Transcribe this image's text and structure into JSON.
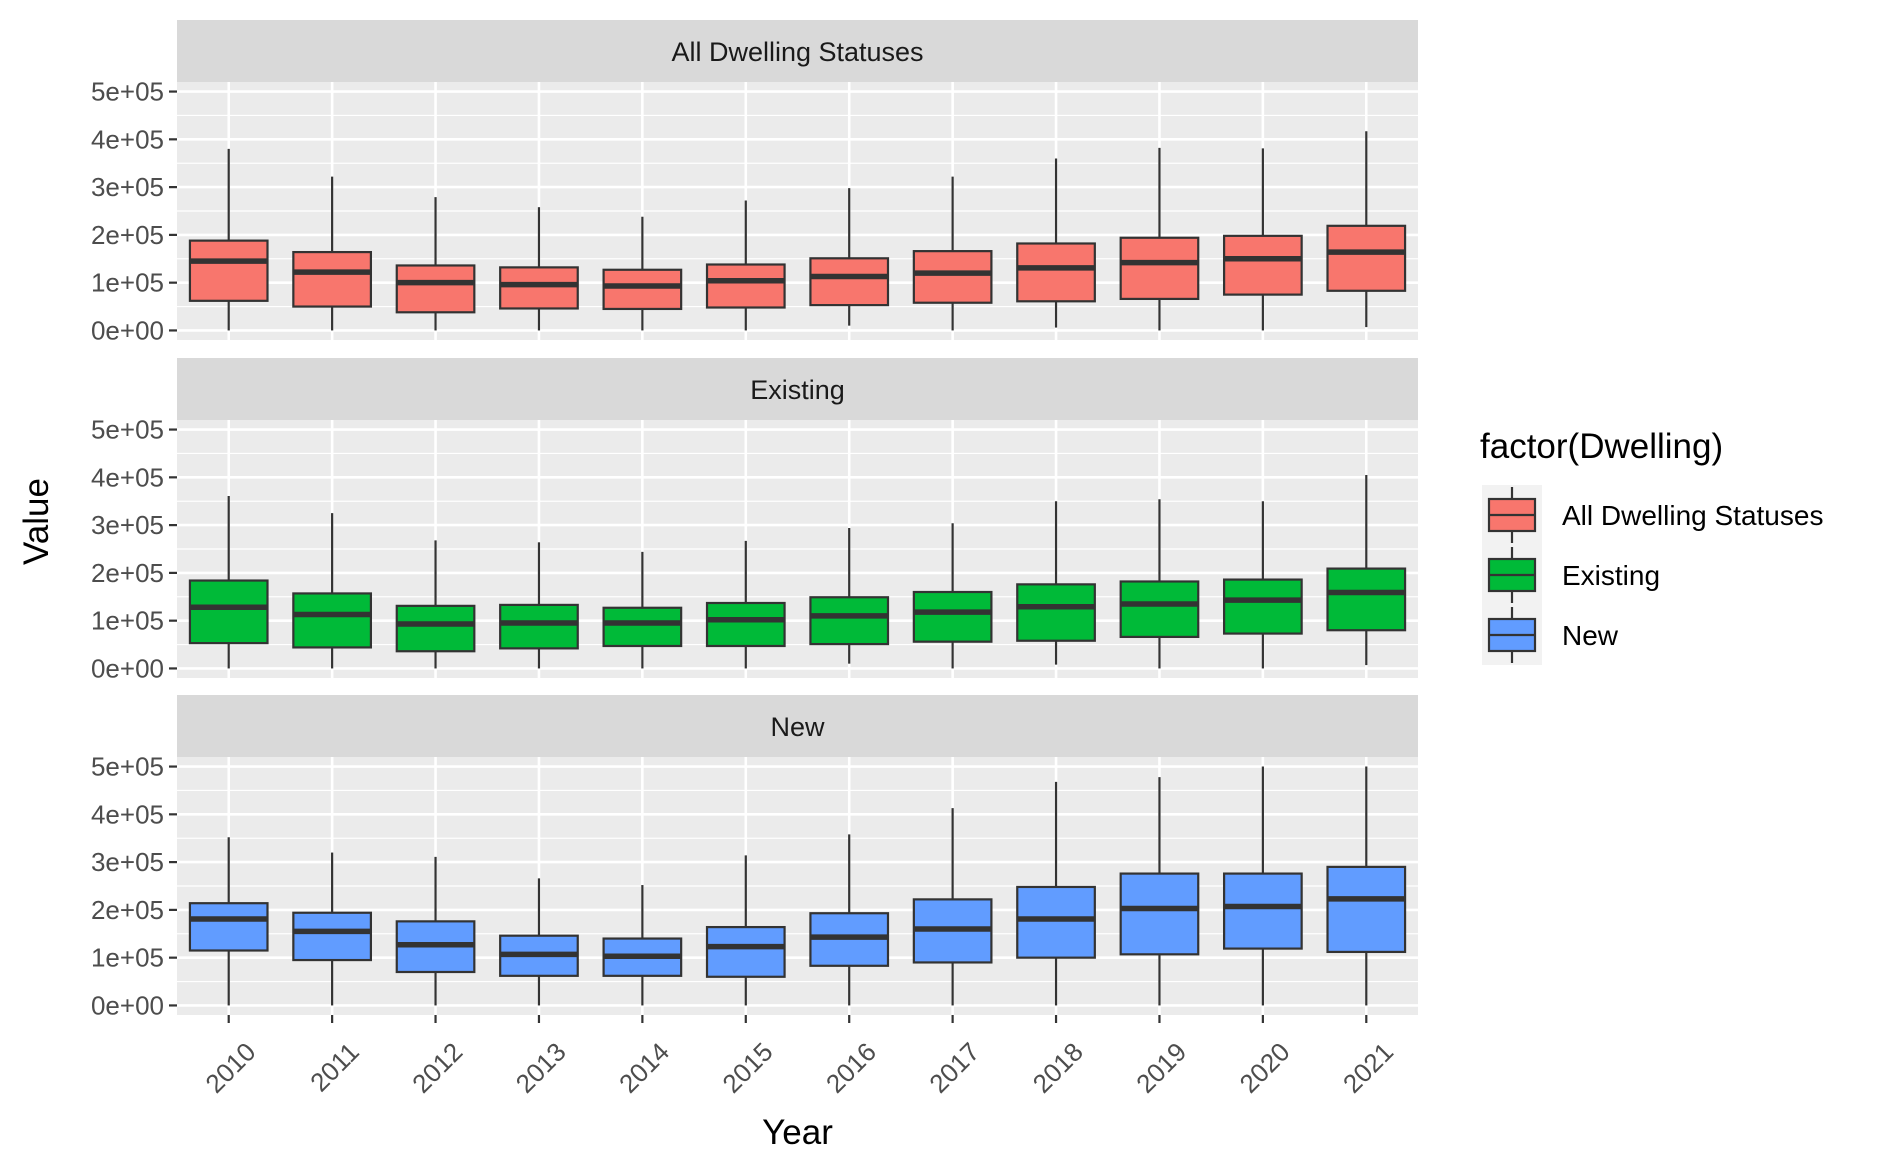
{
  "chart_data": {
    "type": "boxplot",
    "xlabel": "Year",
    "ylabel": "Value",
    "ylim": [
      -20000,
      520000
    ],
    "yticks": [
      0,
      100000,
      200000,
      300000,
      400000,
      500000
    ],
    "ytick_labels": [
      "0e+00",
      "1e+05",
      "2e+05",
      "3e+05",
      "4e+05",
      "5e+05"
    ],
    "categories": [
      "2010",
      "2011",
      "2012",
      "2013",
      "2014",
      "2015",
      "2016",
      "2017",
      "2018",
      "2019",
      "2020",
      "2021"
    ],
    "legend": {
      "title": "factor(Dwelling)",
      "position": "right",
      "entries": [
        {
          "label": "All Dwelling Statuses",
          "color": "#F8766D"
        },
        {
          "label": "Existing",
          "color": "#00BA38"
        },
        {
          "label": "New",
          "color": "#619CFF"
        }
      ]
    },
    "facets": [
      {
        "name": "All Dwelling Statuses",
        "color": "#F8766D",
        "boxes": [
          {
            "min": 0,
            "q1": 62000,
            "median": 145000,
            "q3": 188000,
            "max": 380000
          },
          {
            "min": 0,
            "q1": 50000,
            "median": 122000,
            "q3": 164000,
            "max": 322000
          },
          {
            "min": 0,
            "q1": 38000,
            "median": 100000,
            "q3": 136000,
            "max": 279000
          },
          {
            "min": 0,
            "q1": 46000,
            "median": 96000,
            "q3": 132000,
            "max": 258000
          },
          {
            "min": 0,
            "q1": 45000,
            "median": 93000,
            "q3": 127000,
            "max": 238000
          },
          {
            "min": 0,
            "q1": 48000,
            "median": 104000,
            "q3": 138000,
            "max": 272000
          },
          {
            "min": 10000,
            "q1": 53000,
            "median": 113000,
            "q3": 151000,
            "max": 298000
          },
          {
            "min": 0,
            "q1": 58000,
            "median": 120000,
            "q3": 166000,
            "max": 322000
          },
          {
            "min": 6000,
            "q1": 61000,
            "median": 131000,
            "q3": 182000,
            "max": 360000
          },
          {
            "min": 0,
            "q1": 66000,
            "median": 142000,
            "q3": 194000,
            "max": 382000
          },
          {
            "min": 0,
            "q1": 75000,
            "median": 150000,
            "q3": 198000,
            "max": 381000
          },
          {
            "min": 7000,
            "q1": 83000,
            "median": 164000,
            "q3": 219000,
            "max": 417000
          }
        ]
      },
      {
        "name": "Existing",
        "color": "#00BA38",
        "boxes": [
          {
            "min": 0,
            "q1": 53000,
            "median": 128000,
            "q3": 184000,
            "max": 361000
          },
          {
            "min": 0,
            "q1": 44000,
            "median": 113000,
            "q3": 157000,
            "max": 325000
          },
          {
            "min": 0,
            "q1": 36000,
            "median": 93000,
            "q3": 131000,
            "max": 268000
          },
          {
            "min": 0,
            "q1": 42000,
            "median": 95000,
            "q3": 133000,
            "max": 264000
          },
          {
            "min": 0,
            "q1": 47000,
            "median": 95000,
            "q3": 127000,
            "max": 244000
          },
          {
            "min": 0,
            "q1": 47000,
            "median": 102000,
            "q3": 137000,
            "max": 267000
          },
          {
            "min": 10000,
            "q1": 51000,
            "median": 110000,
            "q3": 149000,
            "max": 294000
          },
          {
            "min": 0,
            "q1": 56000,
            "median": 118000,
            "q3": 160000,
            "max": 304000
          },
          {
            "min": 8000,
            "q1": 58000,
            "median": 129000,
            "q3": 176000,
            "max": 350000
          },
          {
            "min": 0,
            "q1": 66000,
            "median": 135000,
            "q3": 182000,
            "max": 354000
          },
          {
            "min": 0,
            "q1": 73000,
            "median": 143000,
            "q3": 186000,
            "max": 350000
          },
          {
            "min": 7000,
            "q1": 80000,
            "median": 159000,
            "q3": 209000,
            "max": 405000
          }
        ]
      },
      {
        "name": "New",
        "color": "#619CFF",
        "boxes": [
          {
            "min": 0,
            "q1": 115000,
            "median": 181000,
            "q3": 214000,
            "max": 352000
          },
          {
            "min": 0,
            "q1": 95000,
            "median": 155000,
            "q3": 194000,
            "max": 320000
          },
          {
            "min": 0,
            "q1": 70000,
            "median": 127000,
            "q3": 176000,
            "max": 311000
          },
          {
            "min": 0,
            "q1": 62000,
            "median": 107000,
            "q3": 146000,
            "max": 266000
          },
          {
            "min": 0,
            "q1": 62000,
            "median": 103000,
            "q3": 140000,
            "max": 252000
          },
          {
            "min": 0,
            "q1": 60000,
            "median": 123000,
            "q3": 164000,
            "max": 314000
          },
          {
            "min": 0,
            "q1": 83000,
            "median": 143000,
            "q3": 193000,
            "max": 358000
          },
          {
            "min": 0,
            "q1": 90000,
            "median": 160000,
            "q3": 222000,
            "max": 413000
          },
          {
            "min": 0,
            "q1": 100000,
            "median": 181000,
            "q3": 248000,
            "max": 468000
          },
          {
            "min": 0,
            "q1": 107000,
            "median": 203000,
            "q3": 276000,
            "max": 478000
          },
          {
            "min": 0,
            "q1": 119000,
            "median": 207000,
            "q3": 276000,
            "max": 500000
          },
          {
            "min": 0,
            "q1": 112000,
            "median": 223000,
            "q3": 290000,
            "max": 500000
          }
        ]
      }
    ]
  }
}
